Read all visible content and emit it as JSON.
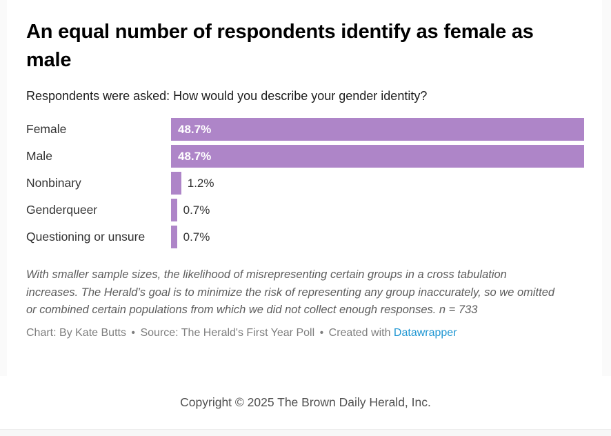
{
  "page": {
    "title": "An equal number of respondents identify as female as male",
    "subtitle": "Respondents were asked: How would you describe your gender identity?",
    "notes": "With smaller sample sizes, the likelihood of misrepresenting certain groups in a cross tabulation increases. The Herald’s goal is to minimize the risk of representing any group inaccurately, so we omitted or combined certain populations from which we did not collect enough responses. n = 733",
    "credit": {
      "chart_by": "Chart: By Kate Butts",
      "separator": "•",
      "source": "Source: The Herald's First Year Poll",
      "created_with": "Created with",
      "link_label": "Datawrapper"
    },
    "footer": {
      "copyright": "Copyright © 2025 The Brown Daily Herald, Inc."
    }
  },
  "chart_data": {
    "type": "bar",
    "orientation": "horizontal",
    "title": "An equal number of respondents identify as female as male",
    "subtitle": "Respondents were asked: How would you describe your gender identity?",
    "categories": [
      "Female",
      "Male",
      "Nonbinary",
      "Genderqueer",
      "Questioning or unsure"
    ],
    "values": [
      48.7,
      48.7,
      1.2,
      0.7,
      0.7
    ],
    "value_labels": [
      "48.7%",
      "48.7%",
      "1.2%",
      "0.7%",
      "0.7%"
    ],
    "xlim": [
      0,
      48.7
    ],
    "grid": false,
    "legend": false,
    "inside_label_threshold": 10
  },
  "colors": {
    "bar": "#ae85c8",
    "inside_value_text": "#ffffff",
    "outside_value_text": "#333333",
    "datawrapper_link": "#1e96d2",
    "embed_background": "#fafafa",
    "footer_text": "#4f4f4f"
  }
}
